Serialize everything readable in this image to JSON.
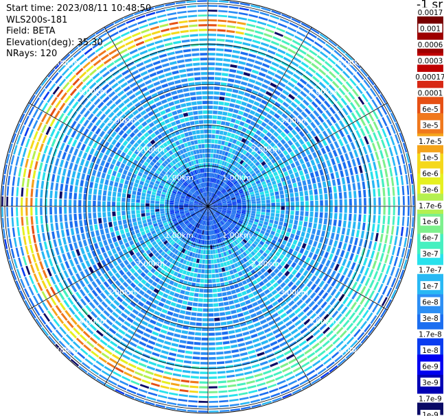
{
  "info": {
    "start_time": "Start time: 2023/08/11 10:48:50",
    "device": "WLS200s-181",
    "field": "Field: BETA",
    "elevation": "Elevation(deg): 35.30",
    "nrays": "NRays: 120"
  },
  "colorbar": {
    "unit_label": "-1 sr",
    "colors": [
      "#0a0a66",
      "#0000b4",
      "#0000f0",
      "#0a3cf0",
      "#1c6ef0",
      "#2c8ef4",
      "#28b8f4",
      "#28e2ec",
      "#46f0c0",
      "#7cf08c",
      "#b4f050",
      "#e6f020",
      "#f5d81a",
      "#f5a41a",
      "#f0781c",
      "#e65014",
      "#d82814",
      "#c00000",
      "#9e0000",
      "#780000"
    ],
    "labels": [
      "1e-9",
      "1.7e-9",
      "3e-9",
      "6e-9",
      "1e-8",
      "1.7e-8",
      "3e-8",
      "6e-8",
      "1e-7",
      "1.7e-7",
      "3e-7",
      "6e-7",
      "1e-6",
      "1.7e-6",
      "3e-6",
      "6e-6",
      "1e-5",
      "1.7e-5",
      "3e-5",
      "6e-5",
      "0.0001",
      "0.00017",
      "0.0003",
      "0.0006",
      "0.001",
      "0.0017"
    ]
  },
  "chart_data": {
    "type": "heatmap",
    "subtype": "polar PPI scan",
    "field": "BETA",
    "elevation_deg": 35.3,
    "n_rays": 120,
    "range_rings_km": [
      1,
      2,
      3,
      4,
      5
    ],
    "range_ring_labels": [
      "1.00km",
      "2.00km",
      "3.00km",
      "4.00km",
      "5.00km"
    ],
    "azimuth_spokes_deg": [
      0,
      30,
      60,
      90,
      120,
      150,
      180,
      210,
      240,
      270,
      300,
      330
    ],
    "max_range_km": 5.1,
    "colorbar_min": "1e-9",
    "colorbar_max": "0.0017",
    "colorbar_scale": "log",
    "dominant_value": "~1e-8 to 1e-7 (blue / light blue)",
    "feature_ring": {
      "range_km": 4.5,
      "value_range": "1e-6 to 6e-5",
      "sectors": "north-west to south-west"
    },
    "grid": true
  }
}
